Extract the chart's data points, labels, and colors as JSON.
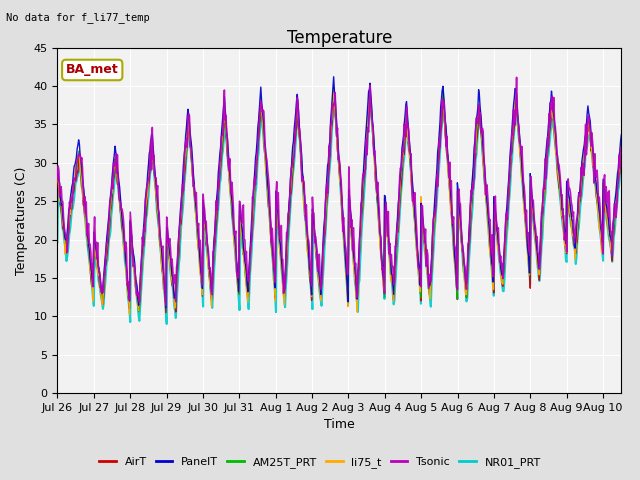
{
  "title": "Temperature",
  "subtitle": "No data for f_li77_temp",
  "xlabel": "Time",
  "ylabel": "Temperatures (C)",
  "ylim": [
    0,
    45
  ],
  "yticks": [
    0,
    5,
    10,
    15,
    20,
    25,
    30,
    35,
    40,
    45
  ],
  "legend_label": "BA_met",
  "series": [
    {
      "name": "AirT",
      "color": "#cc0000",
      "lw": 1.0,
      "zorder": 3
    },
    {
      "name": "PanelT",
      "color": "#0000cc",
      "lw": 1.0,
      "zorder": 4
    },
    {
      "name": "AM25T_PRT",
      "color": "#00bb00",
      "lw": 1.0,
      "zorder": 3
    },
    {
      "name": "li75_t",
      "color": "#ffaa00",
      "lw": 1.0,
      "zorder": 3
    },
    {
      "name": "Tsonic",
      "color": "#bb00bb",
      "lw": 1.2,
      "zorder": 5
    },
    {
      "name": "NR01_PRT",
      "color": "#00cccc",
      "lw": 1.5,
      "zorder": 2
    }
  ],
  "day_peaks": [
    36,
    27,
    32,
    32,
    37,
    35,
    39,
    35,
    41,
    37,
    35,
    40,
    35,
    40,
    35
  ],
  "day_mins": [
    20,
    12,
    10,
    10,
    12,
    12,
    12,
    12,
    11,
    12,
    12,
    12,
    13,
    14,
    18
  ],
  "bg_color": "#e0e0e0",
  "plot_bg": "#f2f2f2",
  "grid_color": "#ffffff",
  "title_fontsize": 12,
  "label_fontsize": 9,
  "tick_fontsize": 8,
  "ba_met_color": "#aa0000",
  "ba_met_edge": "#aaaa00"
}
